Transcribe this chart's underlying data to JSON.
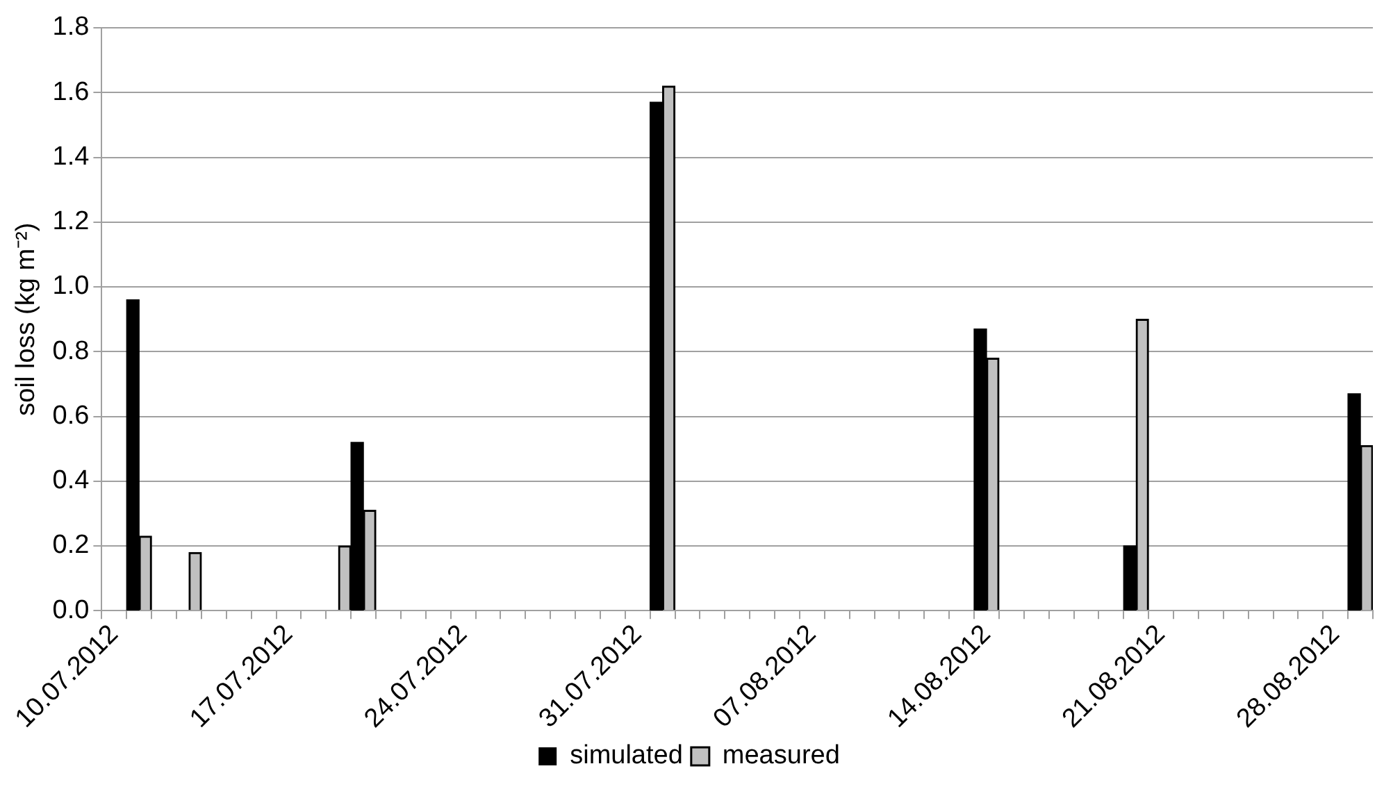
{
  "chart_data": {
    "type": "bar",
    "ylabel": "soil loss (kg m⁻²)",
    "categories": [
      "10.07.2012",
      null,
      null,
      null,
      null,
      null,
      null,
      "17.07.2012",
      null,
      null,
      null,
      null,
      null,
      null,
      "24.07.2012",
      null,
      null,
      null,
      null,
      null,
      null,
      "31.07.2012",
      null,
      null,
      null,
      null,
      null,
      null,
      "07.08.2012",
      null,
      null,
      null,
      null,
      null,
      null,
      "14.08.2012",
      null,
      null,
      null,
      null,
      null,
      null,
      "21.08.2012",
      null,
      null,
      null,
      null,
      null,
      null,
      "28.08.2012",
      null
    ],
    "series": [
      {
        "name": "simulated",
        "color": "#000000",
        "values": [
          null,
          0.96,
          null,
          null,
          null,
          null,
          null,
          null,
          null,
          null,
          0.52,
          null,
          null,
          null,
          null,
          null,
          null,
          null,
          null,
          null,
          null,
          null,
          1.57,
          null,
          null,
          null,
          null,
          null,
          null,
          null,
          null,
          null,
          null,
          null,
          null,
          0.87,
          null,
          null,
          null,
          null,
          null,
          0.2,
          null,
          null,
          null,
          null,
          null,
          null,
          null,
          null,
          0.67
        ]
      },
      {
        "name": "measured",
        "color": "#c0c0c0",
        "values": [
          null,
          0.23,
          null,
          0.18,
          null,
          null,
          null,
          null,
          null,
          0.2,
          0.31,
          null,
          null,
          null,
          null,
          null,
          null,
          null,
          null,
          null,
          null,
          null,
          1.62,
          null,
          null,
          null,
          null,
          null,
          null,
          null,
          null,
          null,
          null,
          null,
          null,
          0.78,
          null,
          null,
          null,
          null,
          null,
          0.9,
          null,
          null,
          null,
          null,
          null,
          null,
          null,
          null,
          0.51
        ]
      }
    ],
    "ylim": [
      0,
      1.8
    ],
    "yticks": [
      {
        "value": 0,
        "label": "0.0"
      },
      {
        "value": 0.2,
        "label": "0.2"
      },
      {
        "value": 0.4,
        "label": "0.4"
      },
      {
        "value": 0.6,
        "label": "0.6"
      },
      {
        "value": 0.8,
        "label": "0.8"
      },
      {
        "value": 1,
        "label": "1.0"
      },
      {
        "value": 1.2,
        "label": "1.2"
      },
      {
        "value": 1.4,
        "label": "1.4"
      },
      {
        "value": 1.6,
        "label": "1.6"
      },
      {
        "value": 1.8,
        "label": "1.8"
      }
    ],
    "grid": "y",
    "legend": "bottom"
  }
}
